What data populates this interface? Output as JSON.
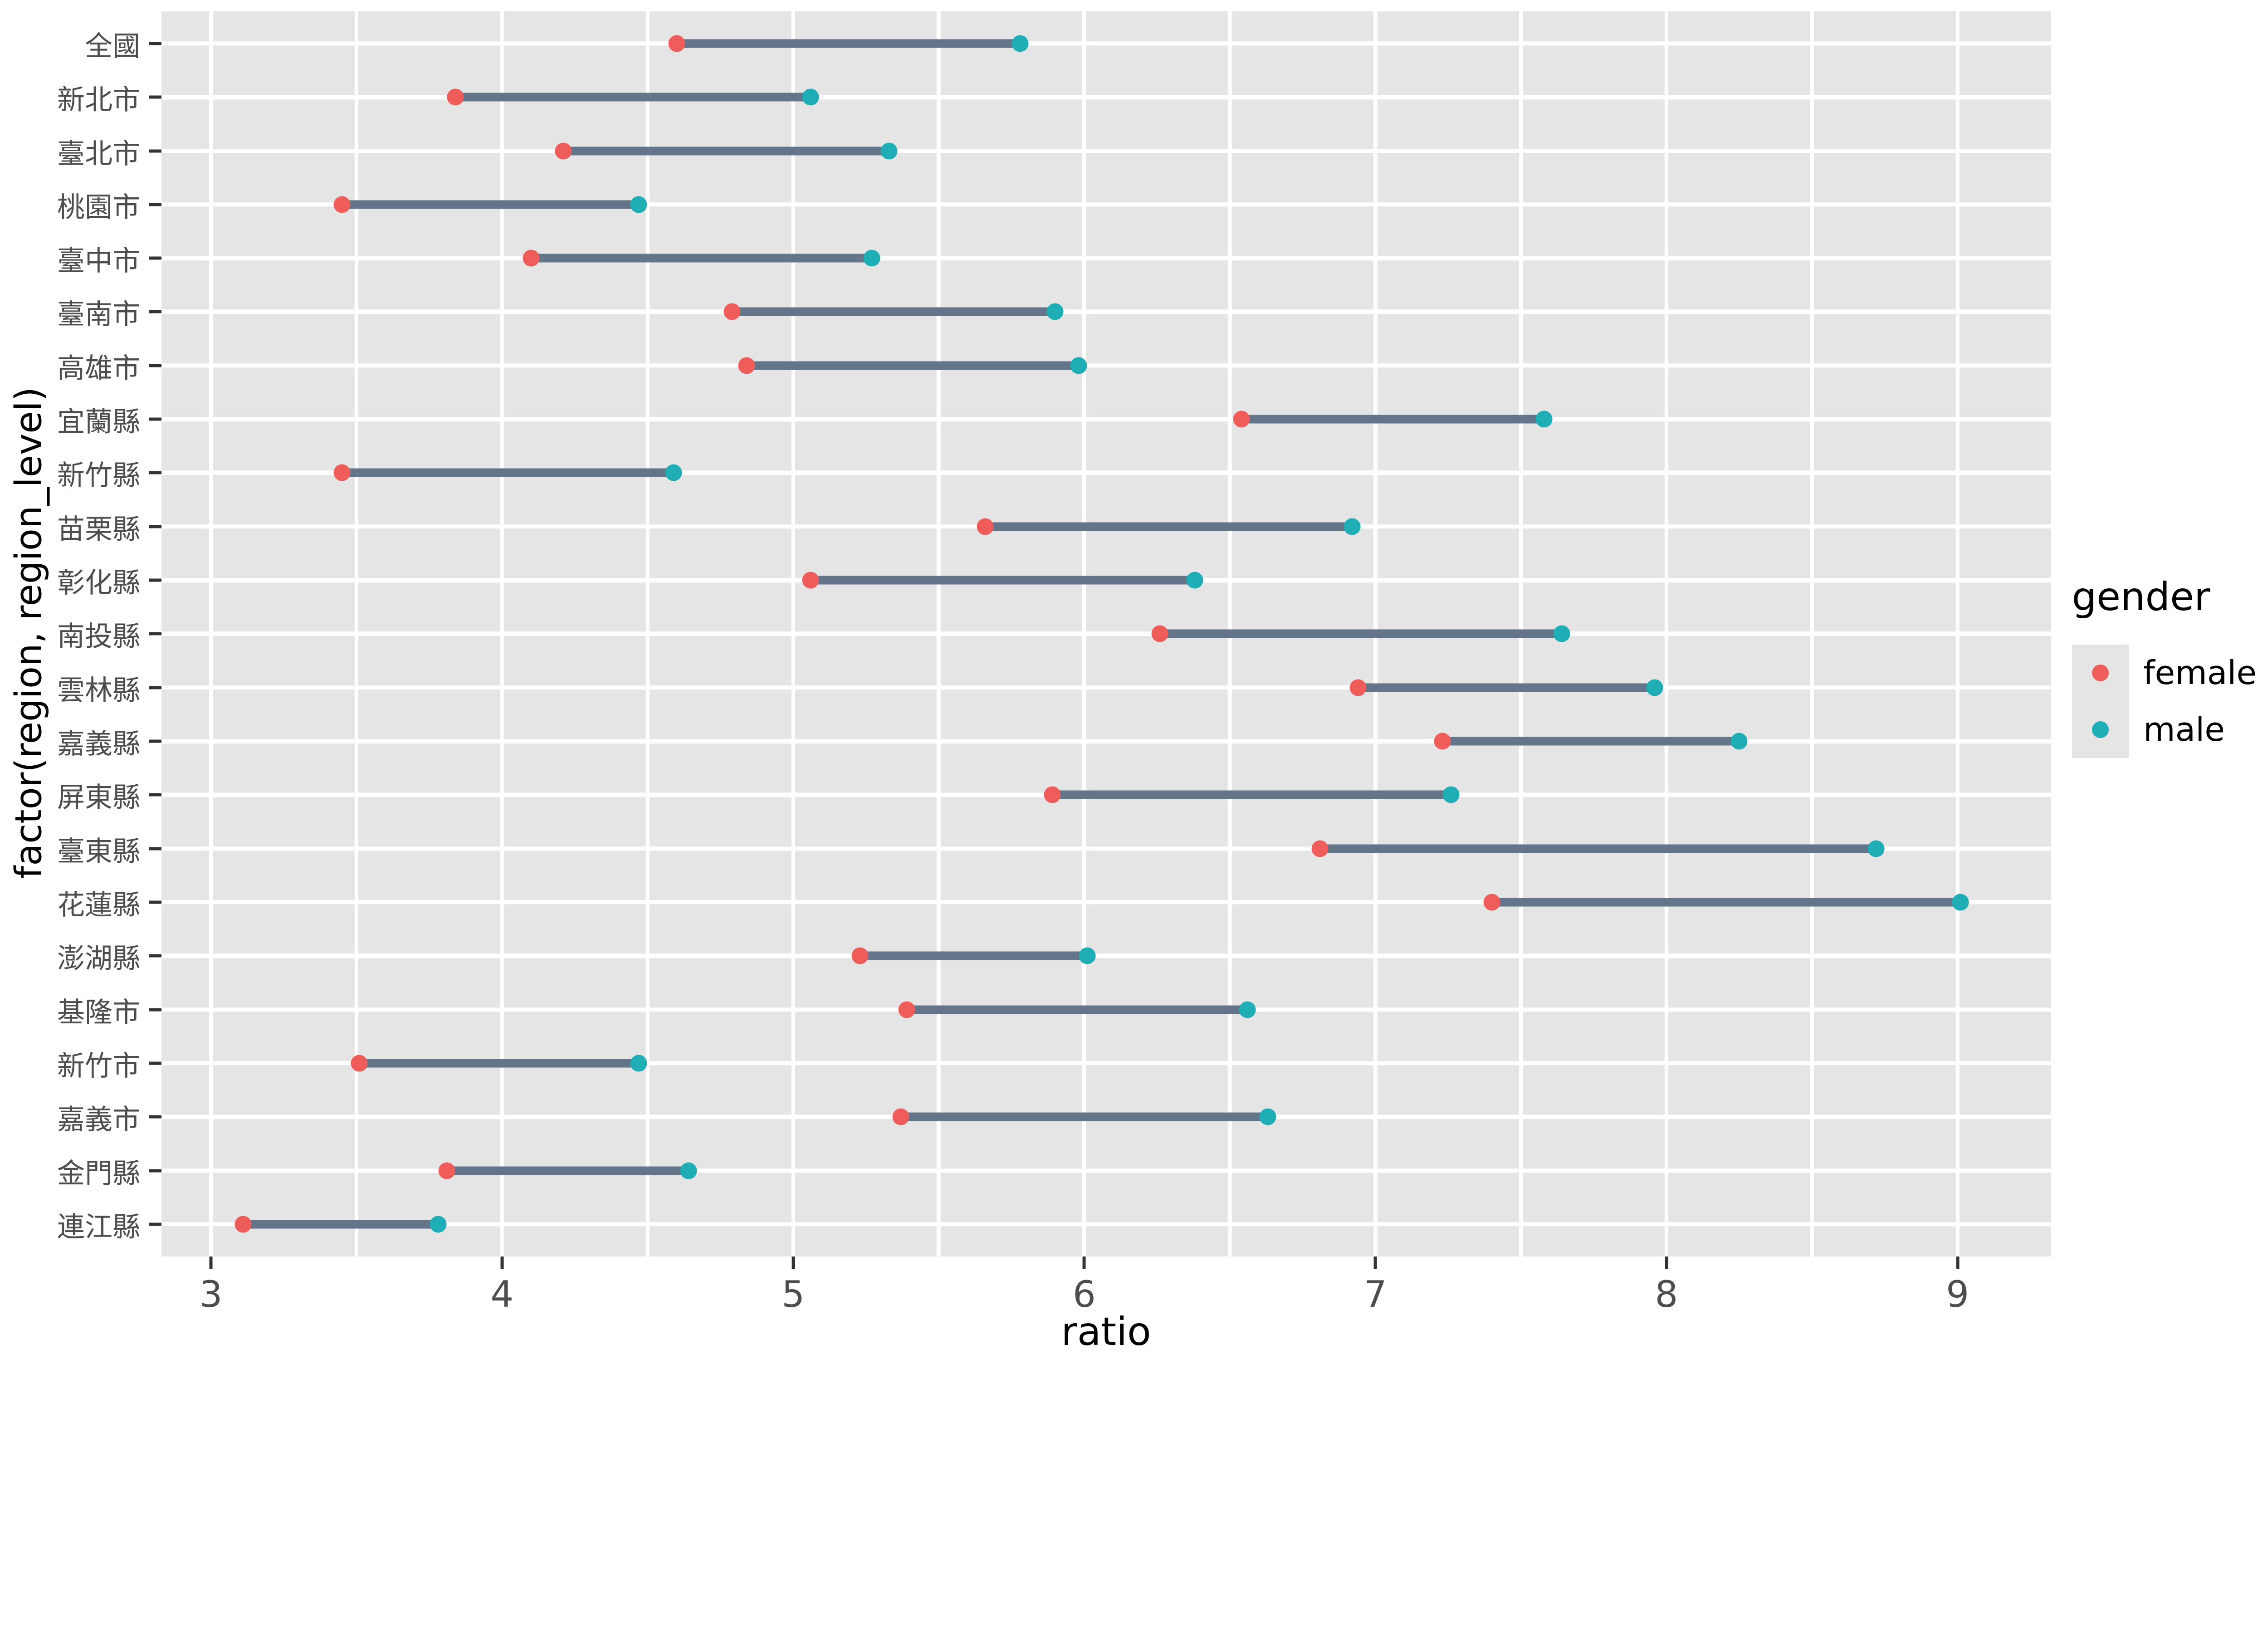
{
  "figure": {
    "background": "#FFFFFF",
    "panel_background": "#E5E5E5",
    "grid_color": "#FFFFFF",
    "tick_color": "#333333",
    "axis_text_color": "#4D4D4D"
  },
  "chart_data": {
    "type": "scatter",
    "subtype": "dumbbell",
    "title": "",
    "xlabel": "ratio",
    "ylabel": "factor(region, region_level)",
    "xlim": [
      2.83,
      9.32
    ],
    "x_ticks": [
      3,
      4,
      5,
      6,
      7,
      8,
      9
    ],
    "x_minor_ticks": [
      3.5,
      4.5,
      5.5,
      6.5,
      7.5,
      8.5
    ],
    "grid": true,
    "legend": {
      "title": "gender",
      "position": "right",
      "entries": [
        {
          "label": "female",
          "color": "#EE5D5A"
        },
        {
          "label": "male",
          "color": "#1FAEB5"
        }
      ]
    },
    "segment_color": "#64758A",
    "categories": [
      "全國",
      "新北市",
      "臺北市",
      "桃園市",
      "臺中市",
      "臺南市",
      "高雄市",
      "宜蘭縣",
      "新竹縣",
      "苗栗縣",
      "彰化縣",
      "南投縣",
      "雲林縣",
      "嘉義縣",
      "屏東縣",
      "臺東縣",
      "花蓮縣",
      "澎湖縣",
      "基隆市",
      "新竹市",
      "嘉義市",
      "金門縣",
      "連江縣"
    ],
    "series": [
      {
        "name": "female",
        "color": "#EE5D5A",
        "values": [
          4.6,
          3.84,
          4.21,
          3.45,
          4.1,
          4.79,
          4.84,
          6.54,
          3.45,
          5.66,
          5.06,
          6.26,
          6.94,
          7.23,
          5.89,
          6.81,
          7.4,
          5.23,
          5.39,
          3.51,
          5.37,
          3.81,
          3.11
        ]
      },
      {
        "name": "male",
        "color": "#1FAEB5",
        "values": [
          5.78,
          5.06,
          5.33,
          4.47,
          5.27,
          5.9,
          5.98,
          7.58,
          4.59,
          6.92,
          6.38,
          7.64,
          7.96,
          8.25,
          7.26,
          8.72,
          9.01,
          6.01,
          6.56,
          4.47,
          6.63,
          4.64,
          3.78
        ]
      }
    ]
  }
}
